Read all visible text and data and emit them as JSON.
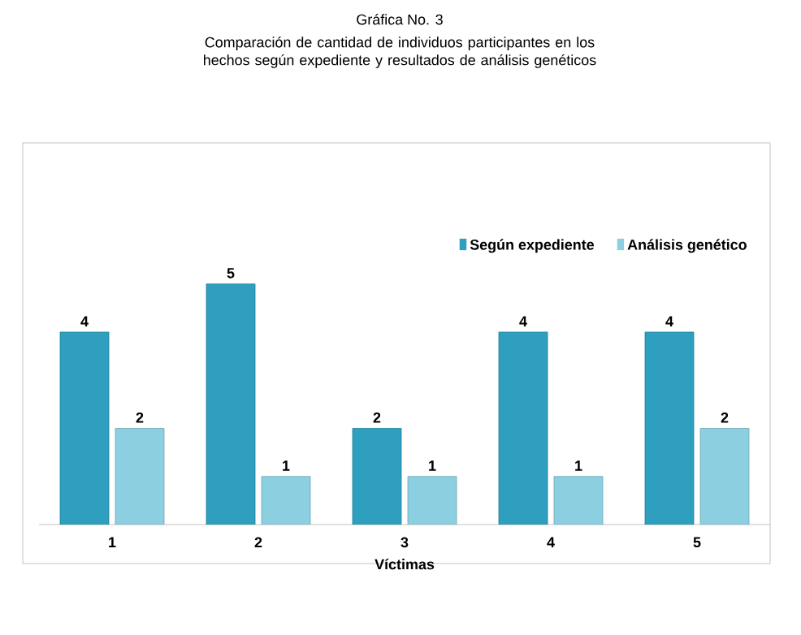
{
  "chart_data": {
    "type": "bar",
    "title": "Gráfica No. 3",
    "subtitle": "Comparación de cantidad de individuos participantes en los hechos según expediente y resultados de análisis genéticos",
    "categories": [
      "1",
      "2",
      "3",
      "4",
      "5"
    ],
    "xlabel": "Víctimas",
    "series": [
      {
        "name": "Según expediente",
        "color": "#2e9fbf",
        "values": [
          4,
          5,
          2,
          4,
          4
        ]
      },
      {
        "name": "Análisis genético",
        "color": "#8ccfe0",
        "values": [
          2,
          1,
          1,
          1,
          2
        ]
      }
    ],
    "data_labels": true,
    "legend": "top right"
  }
}
